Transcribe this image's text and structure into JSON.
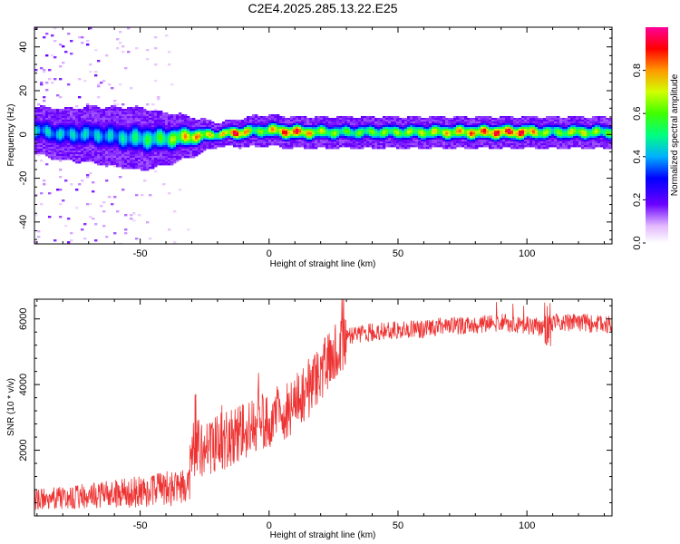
{
  "figure_title": "C2E4.2025.285.13.22.E25",
  "chart_data": [
    {
      "type": "heatmap",
      "name": "spectrogram",
      "xlabel": "Height of straight line (km)",
      "ylabel": "Frequency (Hz)",
      "xlim": [
        -91,
        133
      ],
      "ylim": [
        -50,
        49
      ],
      "x_ticks": [
        -50,
        0,
        50,
        100
      ],
      "y_ticks": [
        -40,
        -20,
        0,
        20,
        40
      ],
      "x_tick_labels": [
        "-50",
        "0",
        "50",
        "100"
      ],
      "y_tick_labels": [
        "-40",
        "-20",
        "0",
        "20",
        "40"
      ],
      "colorbar": {
        "label": "Normalized spectral amplitude",
        "range": [
          0,
          1
        ],
        "ticks": [
          0.0,
          0.2,
          0.4,
          0.6,
          0.8
        ],
        "tick_labels": [
          "0.0",
          "0.2",
          "0.4",
          "0.6",
          "0.8"
        ]
      },
      "ridge_center_hz": [
        [
          -91,
          2
        ],
        [
          -80,
          0
        ],
        [
          -70,
          0
        ],
        [
          -60,
          -1
        ],
        [
          -50,
          -2
        ],
        [
          -40,
          -2
        ],
        [
          -30,
          -1
        ],
        [
          -20,
          0
        ],
        [
          -10,
          1
        ],
        [
          0,
          2
        ],
        [
          10,
          1
        ],
        [
          20,
          1
        ],
        [
          30,
          1
        ],
        [
          50,
          1
        ],
        [
          70,
          1
        ],
        [
          90,
          1
        ],
        [
          110,
          1
        ],
        [
          133,
          1
        ]
      ],
      "ridge_peak_amplitude": [
        [
          -91,
          0.45
        ],
        [
          -60,
          0.45
        ],
        [
          -40,
          0.6
        ],
        [
          -30,
          0.85
        ],
        [
          -20,
          0.7
        ],
        [
          -12,
          1.0
        ],
        [
          -5,
          0.6
        ],
        [
          5,
          0.9
        ],
        [
          10,
          0.95
        ],
        [
          20,
          0.7
        ],
        [
          30,
          0.6
        ],
        [
          60,
          0.7
        ],
        [
          90,
          0.95
        ],
        [
          98,
          0.95
        ],
        [
          110,
          0.6
        ],
        [
          120,
          0.75
        ],
        [
          133,
          0.6
        ]
      ],
      "ridge_halfwidth_hz": [
        [
          -91,
          6
        ],
        [
          -50,
          8
        ],
        [
          -35,
          6
        ],
        [
          -20,
          3
        ],
        [
          -5,
          4
        ],
        [
          133,
          4
        ]
      ]
    },
    {
      "type": "line",
      "name": "snr",
      "xlabel": "Height of straight line (km)",
      "ylabel": "SNR (10 * v/v)",
      "xlim": [
        -91,
        133
      ],
      "ylim": [
        0,
        6600
      ],
      "x_ticks": [
        -50,
        0,
        50,
        100
      ],
      "y_ticks": [
        2000,
        4000,
        6000
      ],
      "x_tick_labels": [
        "-50",
        "0",
        "50",
        "100"
      ],
      "y_tick_labels": [
        "2000",
        "4000",
        "6000"
      ],
      "series": [
        {
          "name": "SNR",
          "color": "#ee3333",
          "envelope": [
            [
              -91,
              500
            ],
            [
              -70,
              600
            ],
            [
              -55,
              700
            ],
            [
              -40,
              850
            ],
            [
              -31,
              850
            ],
            [
              -30,
              2000
            ],
            [
              -20,
              2200
            ],
            [
              -10,
              2600
            ],
            [
              0,
              2900
            ],
            [
              10,
              3400
            ],
            [
              20,
              4300
            ],
            [
              25,
              5000
            ],
            [
              30,
              5450
            ],
            [
              40,
              5600
            ],
            [
              50,
              5650
            ],
            [
              60,
              5700
            ],
            [
              70,
              5800
            ],
            [
              80,
              5800
            ],
            [
              90,
              5900
            ],
            [
              100,
              5800
            ],
            [
              107,
              5700
            ],
            [
              110,
              5900
            ],
            [
              120,
              5900
            ],
            [
              133,
              5800
            ]
          ]
        }
      ]
    }
  ]
}
